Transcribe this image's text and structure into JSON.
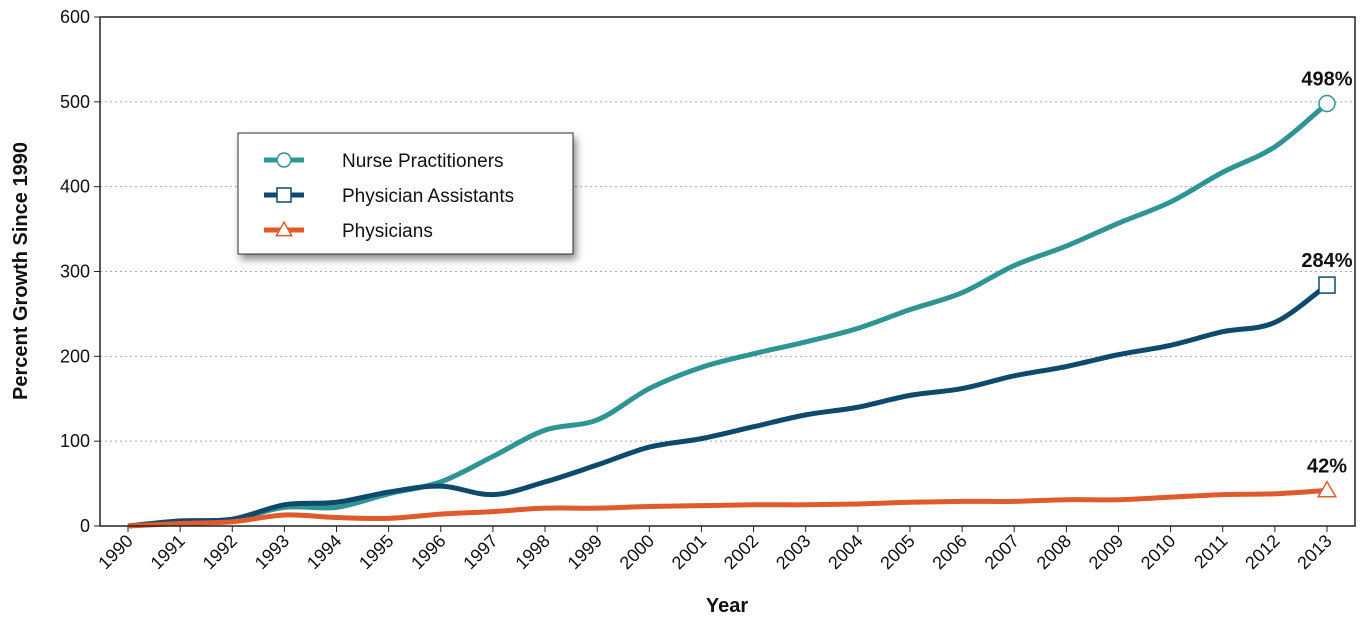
{
  "chart_data": {
    "type": "line",
    "x_label": "Year",
    "y_label": "Percent Growth Since 1990",
    "categories": [
      "1990",
      "1991",
      "1992",
      "1993",
      "1994",
      "1995",
      "1996",
      "1997",
      "1998",
      "1999",
      "2000",
      "2001",
      "2002",
      "2003",
      "2004",
      "2005",
      "2006",
      "2007",
      "2008",
      "2009",
      "2010",
      "2011",
      "2012",
      "2013"
    ],
    "series": [
      {
        "name": "Nurse Practitioners",
        "color": "#2e9494",
        "marker": "circle",
        "values": [
          0,
          5,
          8,
          22,
          22,
          38,
          52,
          82,
          113,
          125,
          162,
          187,
          203,
          217,
          233,
          255,
          275,
          307,
          330,
          357,
          382,
          417,
          447,
          498
        ],
        "value_labels": [
          null,
          null,
          null,
          null,
          null,
          null,
          null,
          null,
          null,
          null,
          null,
          null,
          null,
          null,
          null,
          null,
          null,
          null,
          null,
          null,
          null,
          null,
          null,
          "498%"
        ]
      },
      {
        "name": "Physician Assistants",
        "color": "#0d4a6b",
        "marker": "square",
        "values": [
          0,
          6,
          8,
          25,
          28,
          40,
          47,
          37,
          52,
          72,
          93,
          103,
          117,
          131,
          140,
          154,
          162,
          177,
          188,
          202,
          213,
          229,
          240,
          284
        ],
        "value_labels": [
          null,
          null,
          null,
          null,
          null,
          null,
          null,
          null,
          null,
          null,
          null,
          null,
          null,
          null,
          null,
          null,
          null,
          null,
          null,
          null,
          null,
          null,
          null,
          "284%"
        ]
      },
      {
        "name": "Physicians",
        "color": "#e05a2b",
        "marker": "triangle",
        "values": [
          0,
          3,
          5,
          13,
          10,
          9,
          14,
          17,
          21,
          21,
          23,
          24,
          25,
          25,
          26,
          28,
          29,
          29,
          31,
          31,
          34,
          37,
          38,
          42
        ],
        "value_labels": [
          null,
          null,
          null,
          null,
          null,
          null,
          null,
          null,
          null,
          null,
          null,
          null,
          null,
          null,
          null,
          null,
          null,
          null,
          null,
          null,
          null,
          null,
          null,
          "42%"
        ]
      }
    ],
    "ylim": [
      0,
      600
    ],
    "yticks": [
      0,
      100,
      200,
      300,
      400,
      500,
      600
    ],
    "grid": true,
    "legend": "upper left"
  }
}
